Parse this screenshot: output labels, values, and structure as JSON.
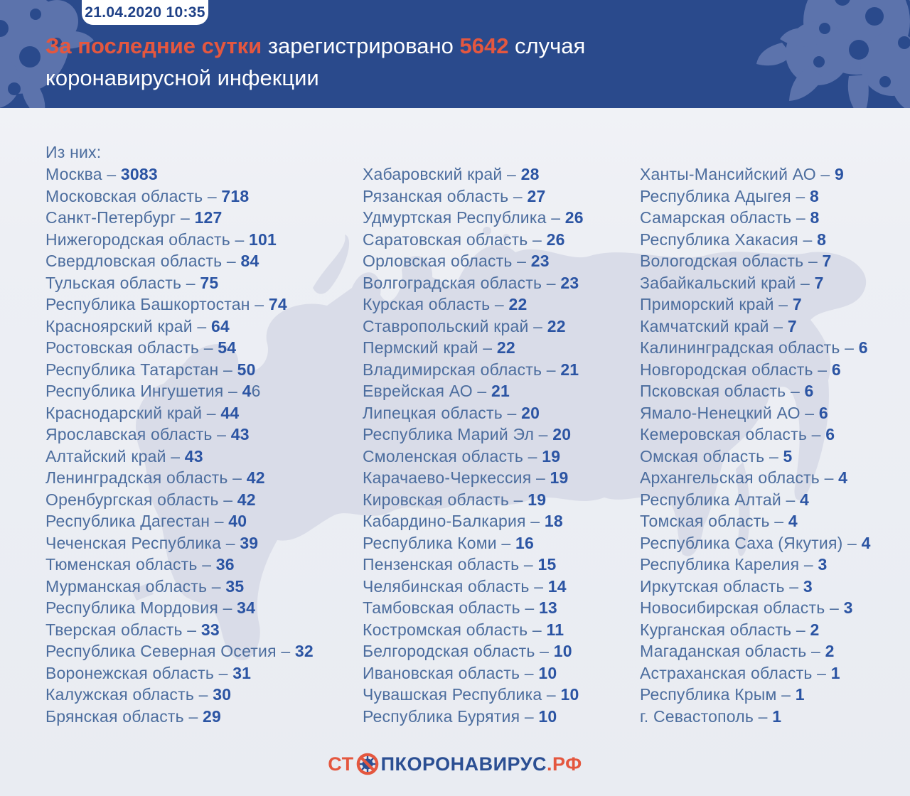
{
  "meta": {
    "timestamp": "21.04.2020 10:35"
  },
  "header": {
    "highlight_prefix": "За последние сутки",
    "middle": " зарегистрировано ",
    "count": "5642",
    "suffix": " случая",
    "line2": "коронавирусной инфекции"
  },
  "list": {
    "intro": "Из них:",
    "separator": " – ",
    "columns": [
      {
        "items": [
          {
            "name": "Москва",
            "value": "3083"
          },
          {
            "name": "Московская область",
            "value": "718"
          },
          {
            "name": "Санкт-Петербург",
            "value": "127"
          },
          {
            "name": "Нижегородская область",
            "value": "101"
          },
          {
            "name": "Свердловская область",
            "value": "84"
          },
          {
            "name": "Тульская область",
            "value": "75"
          },
          {
            "name": "Республика Башкортостан",
            "value": "74"
          },
          {
            "name": "Красноярский край",
            "value": "64"
          },
          {
            "name": "Ростовская область",
            "value": "54"
          },
          {
            "name": "Республика Татарстан",
            "value": "50"
          },
          {
            "name": "Республика Ингушетия",
            "value": "4",
            "value_light": "6"
          },
          {
            "name": "Краснодарский край",
            "value": "44"
          },
          {
            "name": "Ярославская область",
            "value": "43"
          },
          {
            "name": "Алтайский край",
            "value": "43"
          },
          {
            "name": "Ленинградская область",
            "value": "42"
          },
          {
            "name": "Оренбургская область",
            "value": "42"
          },
          {
            "name": "Республика Дагестан",
            "value": "40"
          },
          {
            "name": "Чеченская Республика",
            "value": "39"
          },
          {
            "name": "Тюменская область",
            "value": "36"
          },
          {
            "name": "Мурманская область",
            "value": "35"
          },
          {
            "name": "Республика Мордовия",
            "value": "34"
          },
          {
            "name": "Тверская область",
            "value": "33"
          },
          {
            "name": "Республика Северная Осетия",
            "value": "32"
          },
          {
            "name": "Воронежская область",
            "value": "31"
          },
          {
            "name": "Калужская область",
            "value": "30"
          },
          {
            "name": "Брянская область",
            "value": "29"
          }
        ]
      },
      {
        "items": [
          {
            "name": "Хабаровский край",
            "value": "28"
          },
          {
            "name": "Рязанская область",
            "value": "27"
          },
          {
            "name": "Удмуртская Республика",
            "value": "26"
          },
          {
            "name": "Саратовская область",
            "value": "26"
          },
          {
            "name": "Орловская область",
            "value": "23"
          },
          {
            "name": "Волгоградская область",
            "value": "23"
          },
          {
            "name": "Курская область",
            "value": "22"
          },
          {
            "name": "Ставропольский край",
            "value": "22"
          },
          {
            "name": "Пермский край",
            "value": "22"
          },
          {
            "name": "Владимирская область",
            "value": "21"
          },
          {
            "name": "Еврейская АО",
            "value": "21"
          },
          {
            "name": "Липецкая область",
            "value": "20"
          },
          {
            "name": "Республика Марий Эл",
            "value": "20"
          },
          {
            "name": "Смоленская область",
            "value": "19"
          },
          {
            "name": "Карачаево-Черкессия",
            "value": "19"
          },
          {
            "name": "Кировская область",
            "value": "19"
          },
          {
            "name": "Кабардино-Балкария",
            "value": "18"
          },
          {
            "name": "Республика Коми",
            "value": "16"
          },
          {
            "name": "Пензенская область",
            "value": "15"
          },
          {
            "name": "Челябинская область",
            "value": "14"
          },
          {
            "name": "Тамбовская область",
            "value": "13"
          },
          {
            "name": "Костромская область",
            "value": "11"
          },
          {
            "name": "Белгородская область",
            "value": "10"
          },
          {
            "name": "Ивановская область",
            "value": "10"
          },
          {
            "name": "Чувашская Республика",
            "value": "10"
          },
          {
            "name": "Республика Бурятия",
            "value": "10"
          }
        ]
      },
      {
        "items": [
          {
            "name": "Ханты-Мансийский АО",
            "value": "9"
          },
          {
            "name": "Республика Адыгея",
            "value": "8"
          },
          {
            "name": "Самарская область",
            "value": "8"
          },
          {
            "name": "Республика Хакасия",
            "value": "8"
          },
          {
            "name": "Вологодская область",
            "value": "7"
          },
          {
            "name": "Забайкальский край",
            "value": "7"
          },
          {
            "name": "Приморский край",
            "value": "7"
          },
          {
            "name": "Камчатский край",
            "value": "7"
          },
          {
            "name": "Калининградская область",
            "value": "6"
          },
          {
            "name": "Новгородская область",
            "value": "6"
          },
          {
            "name": "Псковская область",
            "value": "6"
          },
          {
            "name": "Ямало-Ненецкий АО",
            "value": "6"
          },
          {
            "name": "Кемеровская область",
            "value": "6"
          },
          {
            "name": "Омская область",
            "value": "5"
          },
          {
            "name": "Архангельская область",
            "value": "4"
          },
          {
            "name": "Республика Алтай",
            "value": "4"
          },
          {
            "name": "Томская область",
            "value": "4"
          },
          {
            "name": "Республика Саха (Якутия)",
            "value": "4"
          },
          {
            "name": "Республика Карелия",
            "value": "3"
          },
          {
            "name": "Иркутская область",
            "value": "3"
          },
          {
            "name": "Новосибирская область",
            "value": "3"
          },
          {
            "name": "Курганская область",
            "value": "2"
          },
          {
            "name": "Магаданская область",
            "value": "2"
          },
          {
            "name": "Астраханская область",
            "value": "1"
          },
          {
            "name": "Республика Крым",
            "value": "1"
          },
          {
            "name": "г. Севастополь",
            "value": "1"
          }
        ]
      }
    ]
  },
  "footer": {
    "logo_prefix": "СТ",
    "logo_icon": "no-virus-icon",
    "logo_main": "ПКОРОНАВИРУС",
    "logo_suffix": ".РФ"
  },
  "colors": {
    "header_bg": "#2A4A8C",
    "splat_blue": "#5C73AC",
    "page_bg": "#EDEFF4",
    "map_silhouette": "#D9DCE8",
    "label_blue": "#4C6D9E",
    "number_blue": "#2B54A3",
    "accent_orange": "#E4573F",
    "logo_blue": "#2B4F93",
    "badge_text": "#1F4187"
  }
}
